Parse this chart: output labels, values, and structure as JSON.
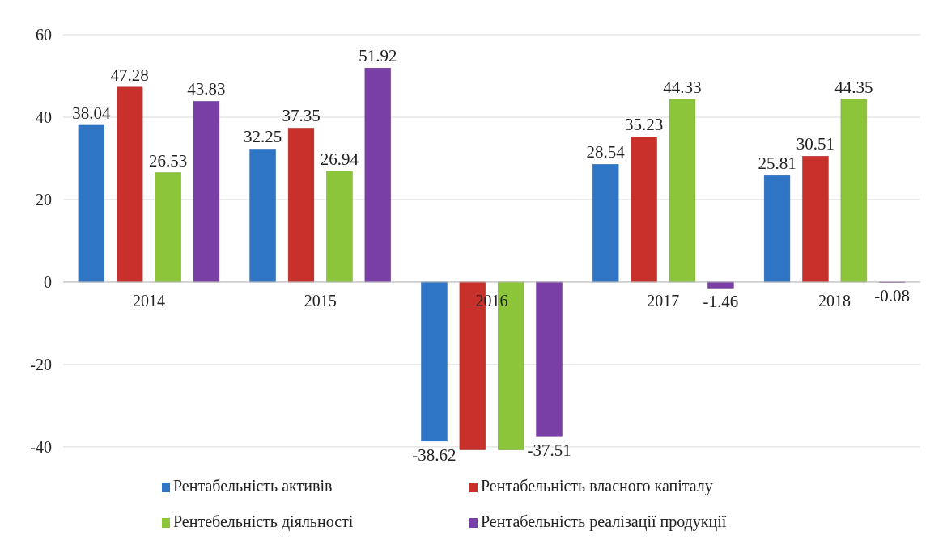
{
  "chart_data": {
    "type": "bar",
    "categories": [
      "2014",
      "2015",
      "2016",
      "2017",
      "2018"
    ],
    "series": [
      {
        "name": "Рентабельність активів",
        "color": "#2f75c6",
        "values": [
          38.04,
          32.25,
          -38.62,
          28.54,
          25.81
        ],
        "value_labels": [
          "38.04",
          "32.25",
          "-38.62",
          "28.54",
          "25.81"
        ]
      },
      {
        "name": "Рентабельність власного капіталу",
        "color": "#c8302c",
        "values": [
          47.28,
          37.35,
          -40.7,
          35.23,
          30.51
        ],
        "value_labels": [
          "47.28",
          "37.35",
          null,
          "35.23",
          "30.51"
        ]
      },
      {
        "name": "Рентебельність діяльності",
        "color": "#8cc43a",
        "values": [
          26.53,
          26.94,
          -40.7,
          44.33,
          44.35
        ],
        "value_labels": [
          "26.53",
          "26.94",
          null,
          "44.33",
          "44.35"
        ]
      },
      {
        "name": "Рентабельність реалізації продукції",
        "color": "#7a3fa6",
        "values": [
          43.83,
          51.92,
          -37.51,
          -1.46,
          -0.08
        ],
        "value_labels": [
          "43.83",
          "51.92",
          "-37.51",
          "-1.46",
          "-0.08"
        ]
      }
    ],
    "ylim": [
      -41,
      60
    ],
    "yticks": [
      -40,
      -20,
      0,
      20,
      40,
      60
    ],
    "grid": "y",
    "legend": "bottom"
  }
}
